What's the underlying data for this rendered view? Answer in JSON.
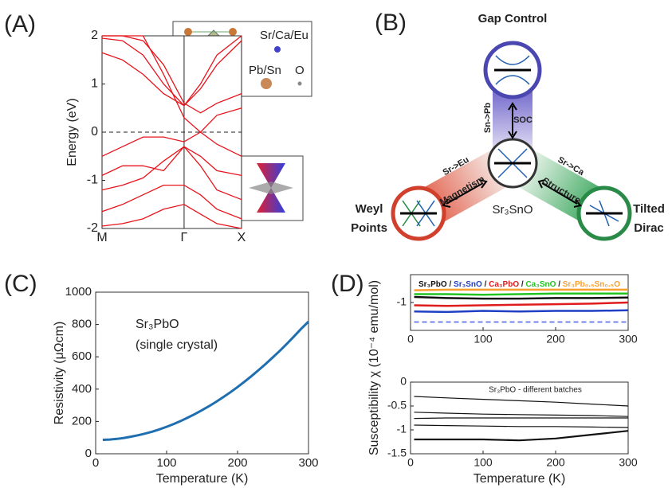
{
  "chart_data": [
    {
      "type": "line",
      "panel_label": "(A)",
      "ylabel": "Energy (eV)",
      "xlim": [
        0,
        1.7
      ],
      "xticks": [
        {
          "value": 0,
          "label": "M"
        },
        {
          "value": 1,
          "label": "Γ"
        },
        {
          "value": 1.7,
          "label": "X"
        }
      ],
      "ylim": [
        -2,
        2
      ],
      "yticks": [
        -2,
        -1,
        0,
        1,
        2
      ],
      "xgrid": true,
      "reference_line": 0,
      "inset_labels": [
        "Sr/Ca/Eu",
        "Pb/Sn",
        "O"
      ],
      "x": [
        0,
        0.25,
        0.5,
        0.75,
        1,
        1.2,
        1.4,
        1.7
      ],
      "series": [
        {
          "color": "#e8141c",
          "values": [
            1.65,
            1.5,
            1.2,
            0.8,
            0.55,
            0.9,
            1.4,
            1.9
          ]
        },
        {
          "color": "#e8141c",
          "values": [
            1.95,
            1.9,
            1.6,
            1.0,
            0.55,
            1.0,
            1.6,
            2.0
          ]
        },
        {
          "color": "#e8141c",
          "values": [
            2.0,
            2.0,
            1.9,
            1.4,
            0.6,
            0.4,
            0.6,
            0.8
          ]
        },
        {
          "color": "#e8141c",
          "values": [
            2.0,
            2.0,
            2.0,
            1.2,
            0.3,
            0.0,
            0.35,
            0.5
          ]
        },
        {
          "color": "#e8141c",
          "values": [
            -0.5,
            -0.3,
            -0.1,
            -0.1,
            -0.2,
            0.0,
            -0.25,
            -0.5
          ]
        },
        {
          "color": "#e8141c",
          "values": [
            -0.9,
            -0.7,
            -0.7,
            -0.8,
            -0.3,
            -0.5,
            -0.8,
            -0.9
          ]
        },
        {
          "color": "#e8141c",
          "values": [
            -1.2,
            -1.1,
            -0.95,
            -0.6,
            -0.3,
            -0.7,
            -1.2,
            -1.4
          ]
        },
        {
          "color": "#e8141c",
          "values": [
            -1.65,
            -1.5,
            -1.3,
            -1.1,
            -1.1,
            -1.3,
            -1.6,
            -1.8
          ]
        },
        {
          "color": "#e8141c",
          "values": [
            -1.95,
            -1.9,
            -1.8,
            -1.6,
            -1.5,
            -1.7,
            -1.9,
            -2.0
          ]
        }
      ]
    },
    {
      "type": "line",
      "panel_label": "(C)",
      "xlabel": "Temperature (K)",
      "ylabel": "Resistivity (μΩcm)",
      "annotations": [
        "Sr₃PbO",
        "(single crystal)"
      ],
      "xlim": [
        0,
        300
      ],
      "xticks": [
        0,
        100,
        200,
        300
      ],
      "ylim": [
        0,
        1000
      ],
      "yticks": [
        0,
        200,
        400,
        600,
        800,
        1000
      ],
      "x": [
        10,
        20,
        30,
        40,
        50,
        60,
        70,
        80,
        90,
        100,
        110,
        120,
        130,
        140,
        150,
        160,
        170,
        180,
        190,
        200,
        210,
        220,
        230,
        240,
        250,
        260,
        270,
        280,
        290,
        300
      ],
      "series": [
        {
          "color": "#1f6fb0",
          "width": 3,
          "values": [
            86,
            88,
            92,
            98,
            106,
            115,
            125,
            137,
            151,
            167,
            184,
            203,
            224,
            246,
            270,
            295,
            322,
            351,
            381,
            413,
            447,
            482,
            519,
            557,
            598,
            639,
            683,
            728,
            775,
            818
          ]
        }
      ]
    },
    {
      "type": "line",
      "panel_label": "(D)",
      "legend_separator": " / ",
      "xlim": [
        0,
        300
      ],
      "xticks": [
        0,
        100,
        200,
        300
      ],
      "ylim": [
        -1.5,
        -0.5
      ],
      "yticks": [
        -1
      ],
      "x": [
        5,
        50,
        100,
        150,
        200,
        250,
        300
      ],
      "series": [
        {
          "name": "Sr₃PbO",
          "color": "#111111",
          "width": 2.5,
          "values": [
            -0.9,
            -0.92,
            -0.93,
            -0.93,
            -0.92,
            -0.92,
            -0.91
          ]
        },
        {
          "name": "Sr₃SnO",
          "color": "#1f3fc4",
          "width": 2.5,
          "values": [
            -1.16,
            -1.17,
            -1.15,
            -1.16,
            -1.15,
            -1.15,
            -1.14
          ]
        },
        {
          "name": "Ca₃PbO",
          "color": "#e01b1b",
          "width": 2.5,
          "values": [
            -1.05,
            -1.06,
            -1.05,
            -1.04,
            -1.03,
            -1.02,
            -1.0
          ]
        },
        {
          "name": "Ca₃SnO",
          "color": "#22c422",
          "width": 2.5,
          "values": [
            -0.85,
            -0.85,
            -0.86,
            -0.85,
            -0.84,
            -0.84,
            -0.84
          ]
        },
        {
          "name": "Sr₃Pb₀.₅Sn₀.₅O",
          "color": "#f7a030",
          "width": 2.5,
          "values": [
            -0.78,
            -0.77,
            -0.77,
            -0.77,
            -0.77,
            -0.77,
            -0.77
          ]
        },
        {
          "color": "#4a5be8",
          "width": 1.5,
          "dash": true,
          "values": [
            -1.35,
            -1.35,
            -1.35,
            -1.35,
            -1.35,
            -1.35,
            -1.35
          ]
        }
      ]
    },
    {
      "type": "line",
      "title": "Sr₃PbO - different batches",
      "xlabel": "Temperature (K)",
      "ylabel": "Susceptibility χ (10⁻⁴ emu/mol)",
      "xlim": [
        0,
        300
      ],
      "xticks": [
        0,
        100,
        200,
        300
      ],
      "ylim": [
        -1.5,
        0
      ],
      "yticks": [
        -1.5,
        -1,
        -0.5,
        0
      ],
      "x": [
        5,
        50,
        100,
        150,
        200,
        250,
        300
      ],
      "series": [
        {
          "color": "#111111",
          "width": 1.2,
          "values": [
            -0.3,
            -0.33,
            -0.36,
            -0.39,
            -0.42,
            -0.46,
            -0.5
          ]
        },
        {
          "color": "#111111",
          "width": 1.2,
          "values": [
            -0.63,
            -0.65,
            -0.67,
            -0.68,
            -0.69,
            -0.7,
            -0.72
          ]
        },
        {
          "color": "#111111",
          "width": 1.2,
          "values": [
            -0.76,
            -0.75,
            -0.75,
            -0.75,
            -0.75,
            -0.75,
            -0.75
          ]
        },
        {
          "color": "#111111",
          "width": 1.2,
          "values": [
            -0.9,
            -0.91,
            -0.92,
            -0.93,
            -0.93,
            -0.94,
            -0.95
          ]
        },
        {
          "color": "#111111",
          "width": 2.2,
          "values": [
            -1.2,
            -1.2,
            -1.2,
            -1.22,
            -1.18,
            -1.1,
            -1.02
          ]
        }
      ]
    }
  ],
  "diagram": {
    "panel_label": "(B)",
    "top": "Gap Control",
    "top_path": "Sn->Pb",
    "top_arm": "SOC",
    "left_path": "Sr->Eu",
    "left_arm": "Magnetism",
    "right_path": "Sr->Ca",
    "right_arm": "Structure",
    "center": "Sr₃SnO",
    "left_node": [
      "Weyl",
      "Points"
    ],
    "right_node": [
      "Tilted",
      "Dirac"
    ]
  }
}
